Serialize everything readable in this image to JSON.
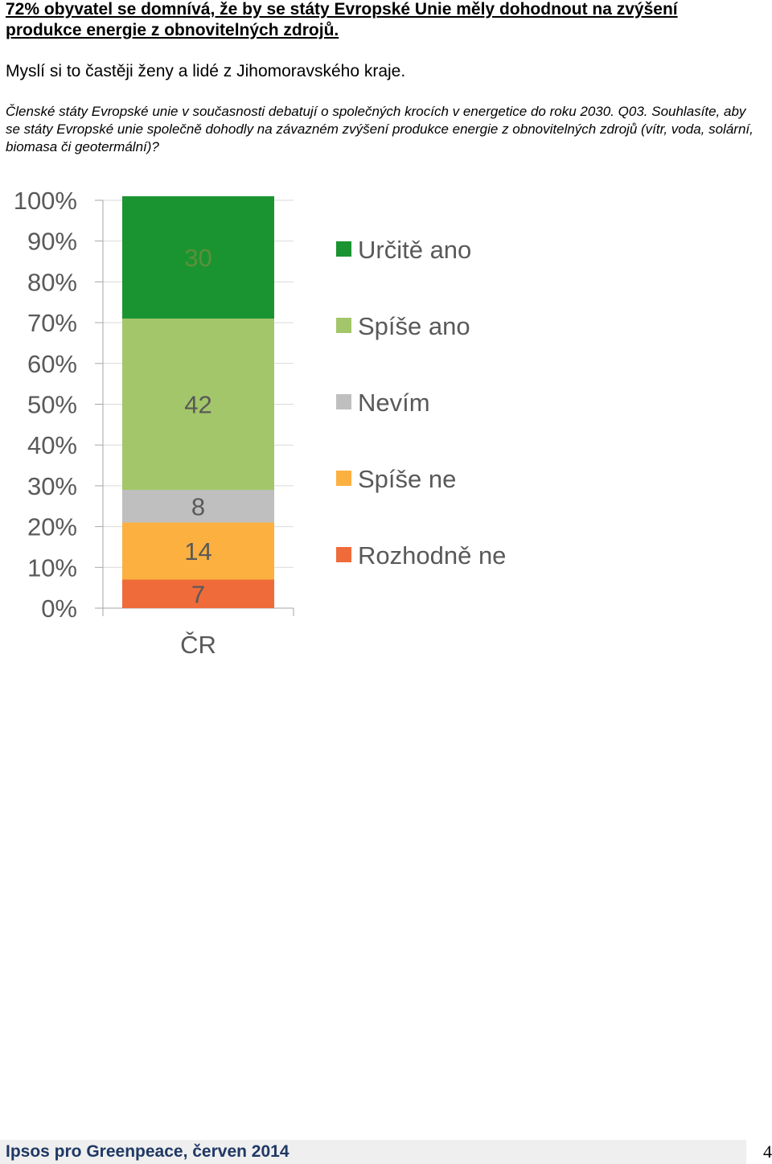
{
  "headline": "72% obyvatel se domnívá, že by se státy Evropské Unie měly dohodnout na zvýšení produkce energie z obnovitelných zdrojů.",
  "subline": "Myslí si to častěji ženy a lidé z Jihomoravského kraje.",
  "question": "Členské státy Evropské unie v současnosti debatují o společných krocích v energetice do roku 2030. Q03. Souhlasíte, aby se státy Evropské unie společně dohodly na závazném zvýšení produkce energie z obnovitelných zdrojů (vítr, voda, solární, biomasa či geotermální)?",
  "footer": {
    "source": "Ipsos pro Greenpeace, červen 2014",
    "page_number": "4"
  },
  "chart_data": {
    "type": "bar",
    "stacked": true,
    "categories": [
      "ČR"
    ],
    "yticks": [
      "0%",
      "10%",
      "20%",
      "30%",
      "40%",
      "50%",
      "60%",
      "70%",
      "80%",
      "90%",
      "100%"
    ],
    "ylim": [
      0,
      100
    ],
    "legend_position": "right",
    "series": [
      {
        "name": "Rozhodně ne",
        "values": [
          7
        ],
        "color": "#ef6b3a",
        "label_color": "#595959"
      },
      {
        "name": "Spíše ne",
        "values": [
          14
        ],
        "color": "#fbb040",
        "label_color": "#595959"
      },
      {
        "name": "Nevím",
        "values": [
          8
        ],
        "color": "#bfbfbf",
        "label_color": "#595959"
      },
      {
        "name": "Spíše ano",
        "values": [
          42
        ],
        "color": "#a3c66a",
        "label_color": "#595959"
      },
      {
        "name": "Určitě ano",
        "values": [
          30
        ],
        "color": "#1a9431",
        "label_color": "#5e8f3a"
      }
    ]
  }
}
